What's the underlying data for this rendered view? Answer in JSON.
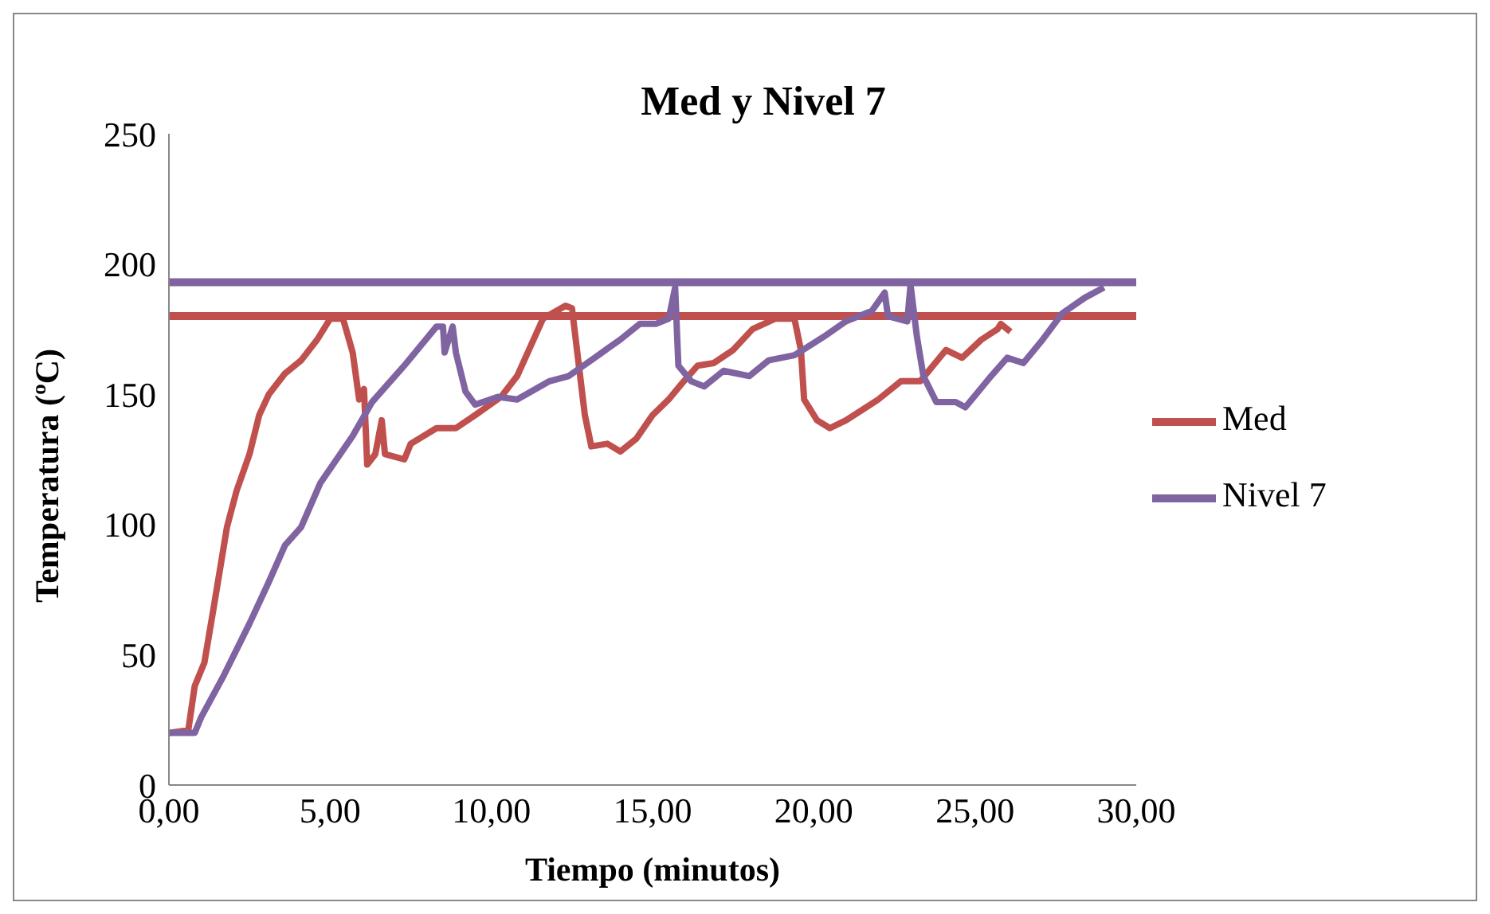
{
  "chart_data": {
    "type": "line",
    "title": "Med y Nivel 7",
    "xlabel": "Tiempo (minutos)",
    "ylabel": "Temperatura (ºC)",
    "xlim": [
      0,
      30
    ],
    "xticks": [
      {
        "value": 0,
        "label": "0,00"
      },
      {
        "value": 5,
        "label": "5,00"
      },
      {
        "value": 10,
        "label": "10,00"
      },
      {
        "value": 15,
        "label": "15,00"
      },
      {
        "value": 20,
        "label": "20,00"
      },
      {
        "value": 25,
        "label": "25,00"
      },
      {
        "value": 30,
        "label": "30,00"
      }
    ],
    "ylim": [
      0,
      250
    ],
    "yticks": [
      0,
      50,
      100,
      150,
      200,
      250
    ],
    "grid": false,
    "legend": "right",
    "marker": "none",
    "line_style": "solid",
    "ref_lines": [
      {
        "axis": "y",
        "value": 193,
        "color": "#8064a2"
      },
      {
        "axis": "y",
        "value": 180,
        "color": "#c0504d"
      }
    ],
    "series": [
      {
        "name": "Med",
        "color": "#c0504d",
        "x": [
          0,
          0.6,
          0.8,
          1.1,
          1.4,
          1.8,
          2.1,
          2.5,
          2.8,
          3.1,
          3.6,
          4.1,
          4.6,
          5.0,
          5.4,
          5.7,
          5.9,
          6.05,
          6.15,
          6.4,
          6.6,
          6.7,
          7.3,
          7.5,
          8.3,
          8.9,
          9.5,
          10.3,
          10.8,
          11.6,
          12.3,
          12.5,
          12.9,
          13.1,
          13.6,
          14.0,
          14.5,
          15.0,
          15.5,
          15.9,
          16.4,
          16.9,
          17.5,
          18.1,
          18.8,
          19.4,
          19.6,
          19.7,
          20.1,
          20.5,
          21.0,
          21.5,
          22.0,
          22.7,
          23.3,
          24.1,
          24.6,
          25.2,
          25.7,
          25.8,
          26.1
        ],
        "values": [
          20,
          21,
          38,
          47,
          69,
          99,
          113,
          127,
          142,
          150,
          158,
          163,
          171,
          179,
          179,
          166,
          148,
          152,
          123,
          127,
          140,
          127,
          125,
          131,
          137,
          137,
          142,
          149,
          157,
          179,
          184,
          183,
          142,
          130,
          131,
          128,
          133,
          142,
          148,
          154,
          161,
          162,
          167,
          175,
          179,
          179,
          167,
          148,
          140,
          137,
          140,
          144,
          148,
          155,
          155,
          167,
          164,
          171,
          175,
          177,
          174
        ]
      },
      {
        "name": "Nivel 7",
        "color": "#8064a2",
        "x": [
          0,
          0.8,
          1.0,
          1.7,
          2.5,
          3.1,
          3.6,
          4.1,
          4.7,
          5.7,
          6.3,
          7.3,
          8.3,
          8.5,
          8.55,
          8.8,
          8.9,
          9.2,
          9.5,
          10.2,
          10.8,
          11.8,
          12.4,
          13.2,
          14.0,
          14.6,
          15.1,
          15.5,
          15.7,
          15.8,
          16.2,
          16.6,
          17.2,
          18.0,
          18.6,
          19.4,
          20.3,
          21.0,
          21.8,
          22.2,
          22.3,
          22.9,
          23.0,
          23.2,
          23.4,
          23.8,
          24.4,
          24.7,
          25.1,
          25.5,
          26.0,
          26.5,
          27.1,
          27.7,
          28.4,
          29.0
        ],
        "values": [
          20,
          20,
          26,
          42,
          62,
          78,
          92,
          99,
          116,
          134,
          147,
          161,
          176,
          176,
          166,
          176,
          166,
          151,
          146,
          149,
          148,
          155,
          157,
          164,
          171,
          177,
          177,
          179,
          191,
          161,
          155,
          153,
          159,
          157,
          163,
          165,
          172,
          178,
          182,
          189,
          180,
          178,
          192,
          172,
          157,
          147,
          147,
          145,
          151,
          157,
          164,
          162,
          171,
          181,
          187,
          191
        ]
      }
    ]
  }
}
